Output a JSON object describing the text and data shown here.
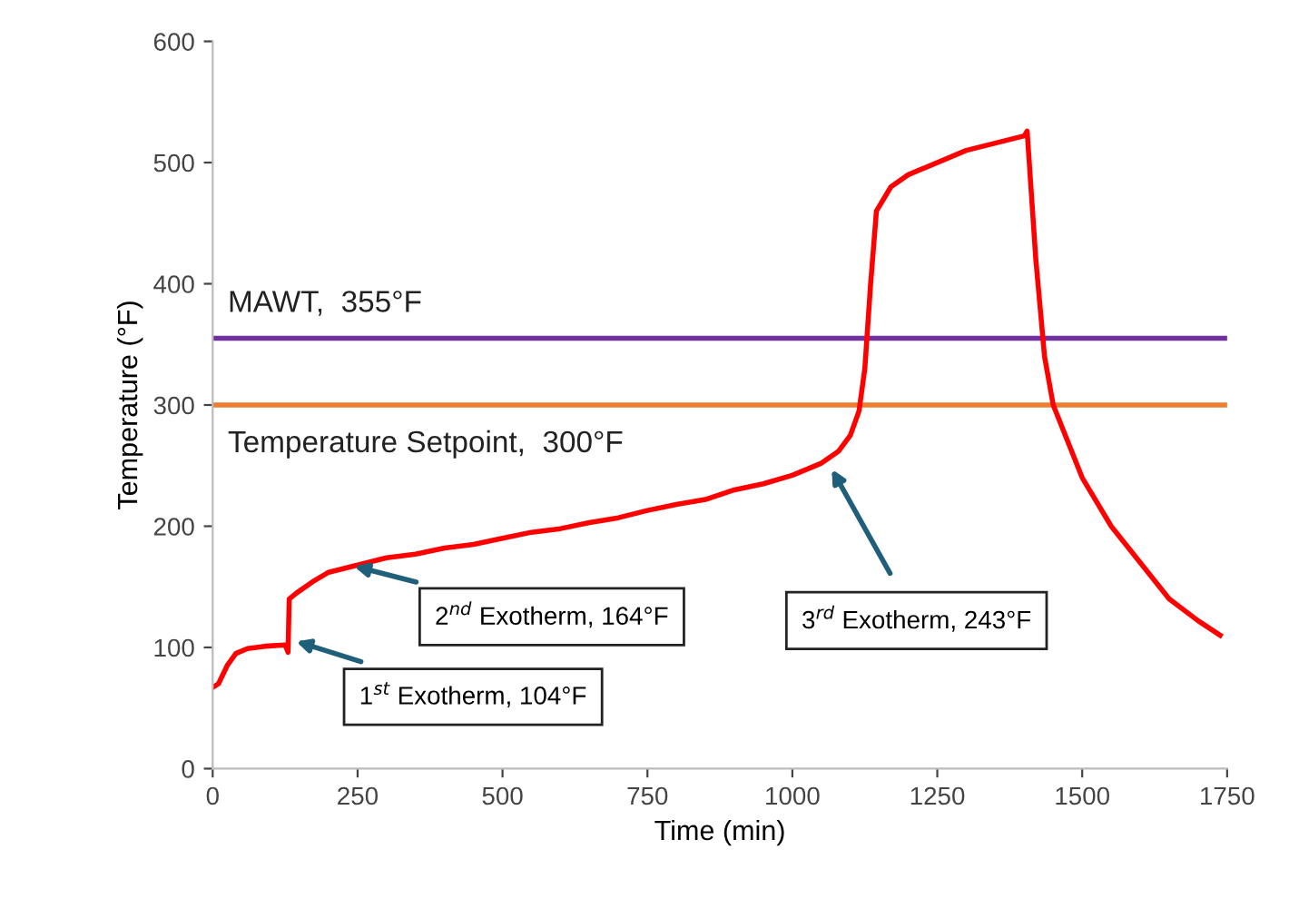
{
  "chart_data": {
    "type": "line",
    "xlabel": "Time (min)",
    "ylabel": "Temperature (°F)",
    "xlim": [
      0,
      1750
    ],
    "xticks": [
      0,
      250,
      500,
      750,
      1000,
      1250,
      1500,
      1750
    ],
    "ylim": [
      0,
      600
    ],
    "yticks": [
      0,
      100,
      200,
      300,
      400,
      500,
      600
    ],
    "grid": false,
    "legend": false,
    "marker": "none",
    "line_style": "solid",
    "series": [
      {
        "color": "#ff0000",
        "x": [
          0,
          10,
          25,
          40,
          60,
          90,
          125,
          130,
          132,
          145,
          175,
          200,
          250,
          300,
          350,
          400,
          450,
          500,
          550,
          600,
          650,
          700,
          750,
          800,
          850,
          900,
          950,
          1000,
          1050,
          1080,
          1100,
          1115,
          1125,
          1135,
          1145,
          1170,
          1200,
          1300,
          1400,
          1405,
          1420,
          1435,
          1450,
          1500,
          1550,
          1600,
          1650,
          1700,
          1738
        ],
        "values": [
          67,
          70,
          85,
          95,
          99,
          101,
          102,
          96,
          140,
          145,
          155,
          162,
          168,
          174,
          177,
          182,
          185,
          190,
          195,
          198,
          203,
          207,
          213,
          218,
          222,
          230,
          235,
          242,
          252,
          262,
          275,
          295,
          330,
          400,
          460,
          480,
          490,
          510,
          522,
          526,
          420,
          340,
          300,
          240,
          200,
          170,
          140,
          122,
          110
        ]
      }
    ],
    "ref_lines": [
      {
        "axis": "y",
        "value": 355,
        "label": "MAWT,  355°F",
        "color": "#7030a0"
      },
      {
        "axis": "y",
        "value": 300,
        "label": "Temperature Setpoint,  300°F",
        "color": "#ed7d31"
      }
    ],
    "annotations": [
      {
        "text": "1$^{st}$ Exotherm, 104°F",
        "x": 144,
        "y": 105
      },
      {
        "text": "2$^{nd}$ Exotherm, 164°F",
        "x": 244,
        "y": 167
      },
      {
        "text": "3$^{rd}$ Exotherm, 243°F",
        "x": 1068,
        "y": 247
      }
    ]
  }
}
